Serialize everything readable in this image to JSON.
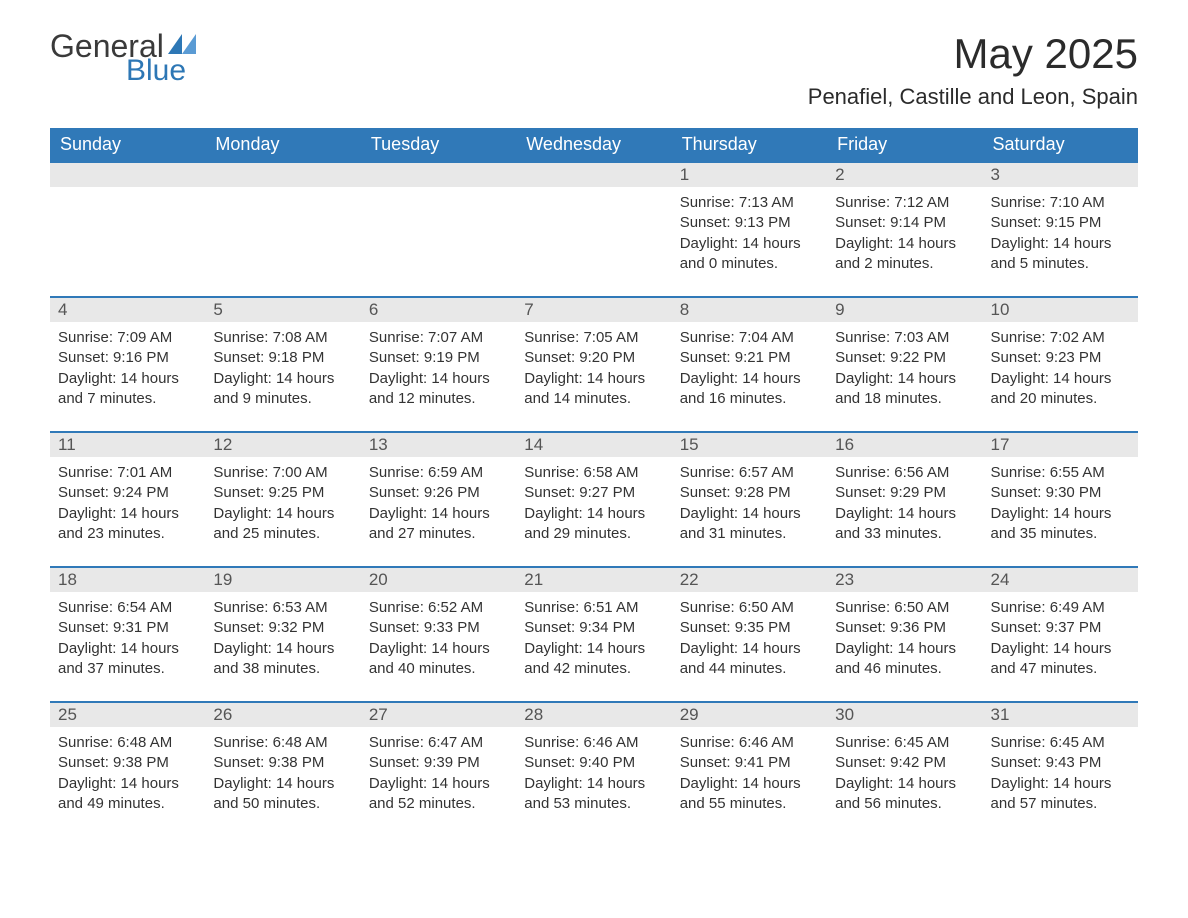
{
  "brand": {
    "word1": "General",
    "word2": "Blue",
    "accent_color": "#2d77b5"
  },
  "title": "May 2025",
  "location": "Penafiel, Castille and Leon, Spain",
  "header_bg": "#3079b8",
  "daynum_bg": "#e8e8e8",
  "columns": [
    "Sunday",
    "Monday",
    "Tuesday",
    "Wednesday",
    "Thursday",
    "Friday",
    "Saturday"
  ],
  "weeks": [
    [
      null,
      null,
      null,
      null,
      {
        "n": "1",
        "sunrise": "7:13 AM",
        "sunset": "9:13 PM",
        "daylight": "14 hours and 0 minutes."
      },
      {
        "n": "2",
        "sunrise": "7:12 AM",
        "sunset": "9:14 PM",
        "daylight": "14 hours and 2 minutes."
      },
      {
        "n": "3",
        "sunrise": "7:10 AM",
        "sunset": "9:15 PM",
        "daylight": "14 hours and 5 minutes."
      }
    ],
    [
      {
        "n": "4",
        "sunrise": "7:09 AM",
        "sunset": "9:16 PM",
        "daylight": "14 hours and 7 minutes."
      },
      {
        "n": "5",
        "sunrise": "7:08 AM",
        "sunset": "9:18 PM",
        "daylight": "14 hours and 9 minutes."
      },
      {
        "n": "6",
        "sunrise": "7:07 AM",
        "sunset": "9:19 PM",
        "daylight": "14 hours and 12 minutes."
      },
      {
        "n": "7",
        "sunrise": "7:05 AM",
        "sunset": "9:20 PM",
        "daylight": "14 hours and 14 minutes."
      },
      {
        "n": "8",
        "sunrise": "7:04 AM",
        "sunset": "9:21 PM",
        "daylight": "14 hours and 16 minutes."
      },
      {
        "n": "9",
        "sunrise": "7:03 AM",
        "sunset": "9:22 PM",
        "daylight": "14 hours and 18 minutes."
      },
      {
        "n": "10",
        "sunrise": "7:02 AM",
        "sunset": "9:23 PM",
        "daylight": "14 hours and 20 minutes."
      }
    ],
    [
      {
        "n": "11",
        "sunrise": "7:01 AM",
        "sunset": "9:24 PM",
        "daylight": "14 hours and 23 minutes."
      },
      {
        "n": "12",
        "sunrise": "7:00 AM",
        "sunset": "9:25 PM",
        "daylight": "14 hours and 25 minutes."
      },
      {
        "n": "13",
        "sunrise": "6:59 AM",
        "sunset": "9:26 PM",
        "daylight": "14 hours and 27 minutes."
      },
      {
        "n": "14",
        "sunrise": "6:58 AM",
        "sunset": "9:27 PM",
        "daylight": "14 hours and 29 minutes."
      },
      {
        "n": "15",
        "sunrise": "6:57 AM",
        "sunset": "9:28 PM",
        "daylight": "14 hours and 31 minutes."
      },
      {
        "n": "16",
        "sunrise": "6:56 AM",
        "sunset": "9:29 PM",
        "daylight": "14 hours and 33 minutes."
      },
      {
        "n": "17",
        "sunrise": "6:55 AM",
        "sunset": "9:30 PM",
        "daylight": "14 hours and 35 minutes."
      }
    ],
    [
      {
        "n": "18",
        "sunrise": "6:54 AM",
        "sunset": "9:31 PM",
        "daylight": "14 hours and 37 minutes."
      },
      {
        "n": "19",
        "sunrise": "6:53 AM",
        "sunset": "9:32 PM",
        "daylight": "14 hours and 38 minutes."
      },
      {
        "n": "20",
        "sunrise": "6:52 AM",
        "sunset": "9:33 PM",
        "daylight": "14 hours and 40 minutes."
      },
      {
        "n": "21",
        "sunrise": "6:51 AM",
        "sunset": "9:34 PM",
        "daylight": "14 hours and 42 minutes."
      },
      {
        "n": "22",
        "sunrise": "6:50 AM",
        "sunset": "9:35 PM",
        "daylight": "14 hours and 44 minutes."
      },
      {
        "n": "23",
        "sunrise": "6:50 AM",
        "sunset": "9:36 PM",
        "daylight": "14 hours and 46 minutes."
      },
      {
        "n": "24",
        "sunrise": "6:49 AM",
        "sunset": "9:37 PM",
        "daylight": "14 hours and 47 minutes."
      }
    ],
    [
      {
        "n": "25",
        "sunrise": "6:48 AM",
        "sunset": "9:38 PM",
        "daylight": "14 hours and 49 minutes."
      },
      {
        "n": "26",
        "sunrise": "6:48 AM",
        "sunset": "9:38 PM",
        "daylight": "14 hours and 50 minutes."
      },
      {
        "n": "27",
        "sunrise": "6:47 AM",
        "sunset": "9:39 PM",
        "daylight": "14 hours and 52 minutes."
      },
      {
        "n": "28",
        "sunrise": "6:46 AM",
        "sunset": "9:40 PM",
        "daylight": "14 hours and 53 minutes."
      },
      {
        "n": "29",
        "sunrise": "6:46 AM",
        "sunset": "9:41 PM",
        "daylight": "14 hours and 55 minutes."
      },
      {
        "n": "30",
        "sunrise": "6:45 AM",
        "sunset": "9:42 PM",
        "daylight": "14 hours and 56 minutes."
      },
      {
        "n": "31",
        "sunrise": "6:45 AM",
        "sunset": "9:43 PM",
        "daylight": "14 hours and 57 minutes."
      }
    ]
  ],
  "labels": {
    "sunrise": "Sunrise: ",
    "sunset": "Sunset: ",
    "daylight": "Daylight: "
  }
}
